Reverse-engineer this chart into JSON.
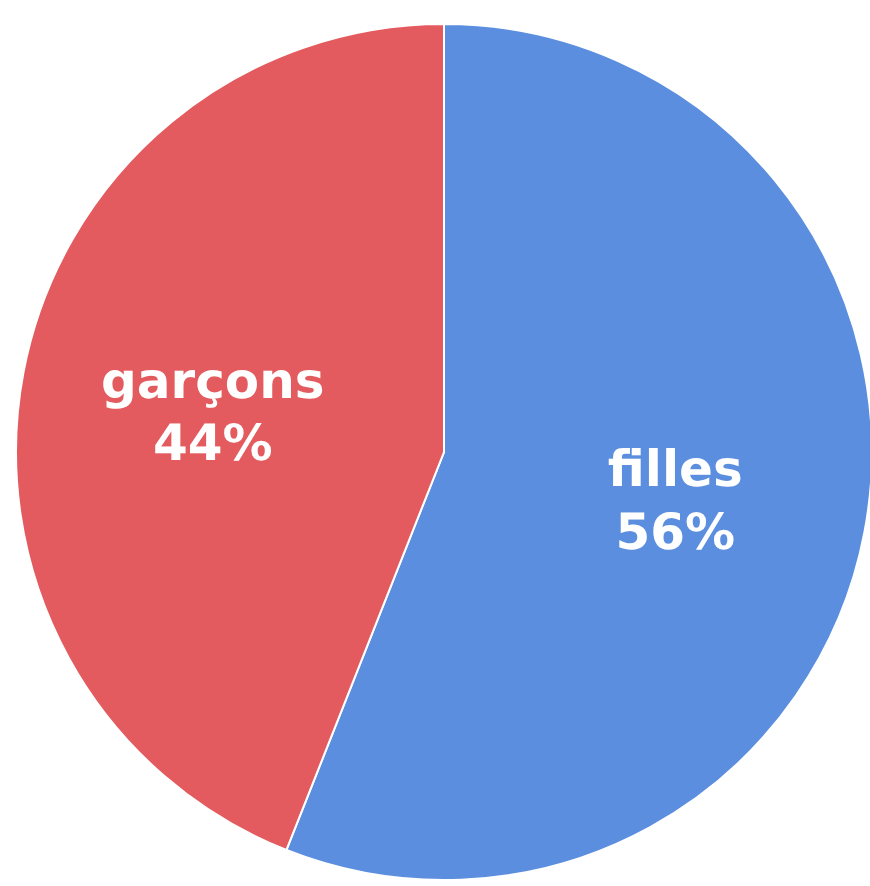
{
  "chart_data": {
    "type": "pie",
    "categories": [
      "filles",
      "garçons"
    ],
    "values": [
      56,
      44
    ],
    "colors": [
      "#5b8ede",
      "#e35b5e"
    ],
    "value_labels": [
      "56%",
      "44%"
    ]
  }
}
